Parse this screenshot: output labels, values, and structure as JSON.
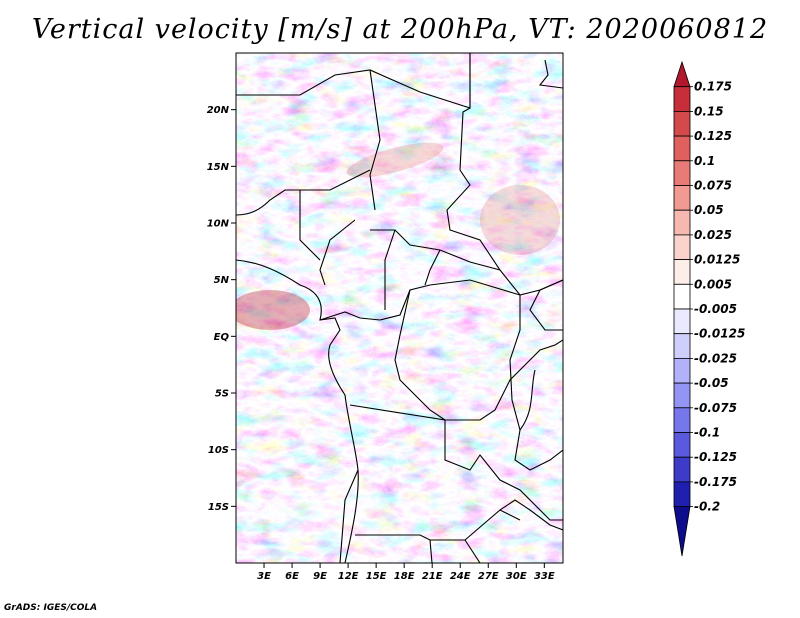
{
  "title": "Vertical velocity [m/s] at 200hPa, VT: 2020060812",
  "credit": "GrADS: IGES/COLA",
  "map": {
    "lon_range": [
      0,
      35
    ],
    "lat_range": [
      -20,
      25
    ],
    "lat_ticks": [
      {
        "value": 20,
        "label": "20N"
      },
      {
        "value": 15,
        "label": "15N"
      },
      {
        "value": 10,
        "label": "10N"
      },
      {
        "value": 5,
        "label": "5N"
      },
      {
        "value": 0,
        "label": "EQ"
      },
      {
        "value": -5,
        "label": "5S"
      },
      {
        "value": -10,
        "label": "10S"
      },
      {
        "value": -15,
        "label": "15S"
      }
    ],
    "lon_ticks": [
      {
        "value": 3,
        "label": "3E"
      },
      {
        "value": 6,
        "label": "6E"
      },
      {
        "value": 9,
        "label": "9E"
      },
      {
        "value": 12,
        "label": "12E"
      },
      {
        "value": 15,
        "label": "15E"
      },
      {
        "value": 18,
        "label": "18E"
      },
      {
        "value": 21,
        "label": "21E"
      },
      {
        "value": 24,
        "label": "24E"
      },
      {
        "value": 27,
        "label": "27E"
      },
      {
        "value": 30,
        "label": "30E"
      },
      {
        "value": 33,
        "label": "33E"
      }
    ]
  },
  "colorbar": {
    "labels": [
      "0.175",
      "0.15",
      "0.125",
      "0.1",
      "0.075",
      "0.05",
      "0.025",
      "0.0125",
      "0.005",
      "-0.005",
      "-0.0125",
      "-0.025",
      "-0.05",
      "-0.075",
      "-0.1",
      "-0.125",
      "-0.175",
      "-0.2"
    ],
    "colors": [
      "#b2182b",
      "#c62f39",
      "#d44a4a",
      "#e0605e",
      "#e97b76",
      "#f09a92",
      "#f6b8b0",
      "#fad3cd",
      "#fdeeea",
      "#ffffff",
      "#eaeaff",
      "#cfcffd",
      "#b2b2fa",
      "#9494f4",
      "#7777ec",
      "#5a5adf",
      "#3c3cc9",
      "#2020b0",
      "#0c0c8c"
    ]
  }
}
